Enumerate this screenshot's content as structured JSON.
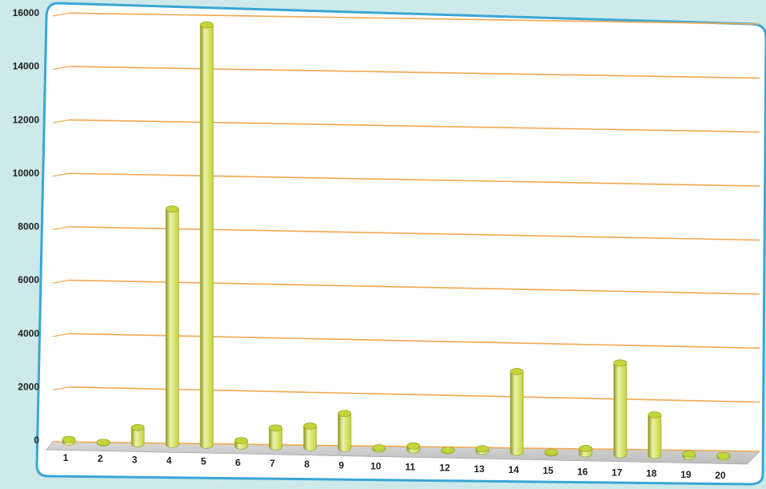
{
  "chart_data": {
    "type": "bar",
    "categories": [
      "1",
      "2",
      "3",
      "4",
      "5",
      "6",
      "7",
      "8",
      "9",
      "10",
      "11",
      "12",
      "13",
      "14",
      "15",
      "16",
      "17",
      "18",
      "19",
      "20"
    ],
    "values": [
      100,
      20,
      600,
      8800,
      15700,
      200,
      700,
      800,
      1300,
      50,
      150,
      20,
      100,
      3000,
      30,
      200,
      3400,
      1500,
      80,
      50
    ],
    "ylim": [
      0,
      16000
    ],
    "yticks": [
      "0",
      "2000",
      "4000",
      "6000",
      "8000",
      "10000",
      "12000",
      "14000",
      "16000"
    ],
    "grid": true,
    "legend": "none",
    "bar_style": "cylinder",
    "colors": {
      "bar": "#c4d43a",
      "bar_light": "#eef2a8",
      "bar_dark": "#8a9a1c",
      "grid": "#f2a851",
      "plot_bg": "#ffffff",
      "border": "#3aa6d6",
      "page_bg": "#cde9ea",
      "floor": "#c8c8c8"
    }
  }
}
